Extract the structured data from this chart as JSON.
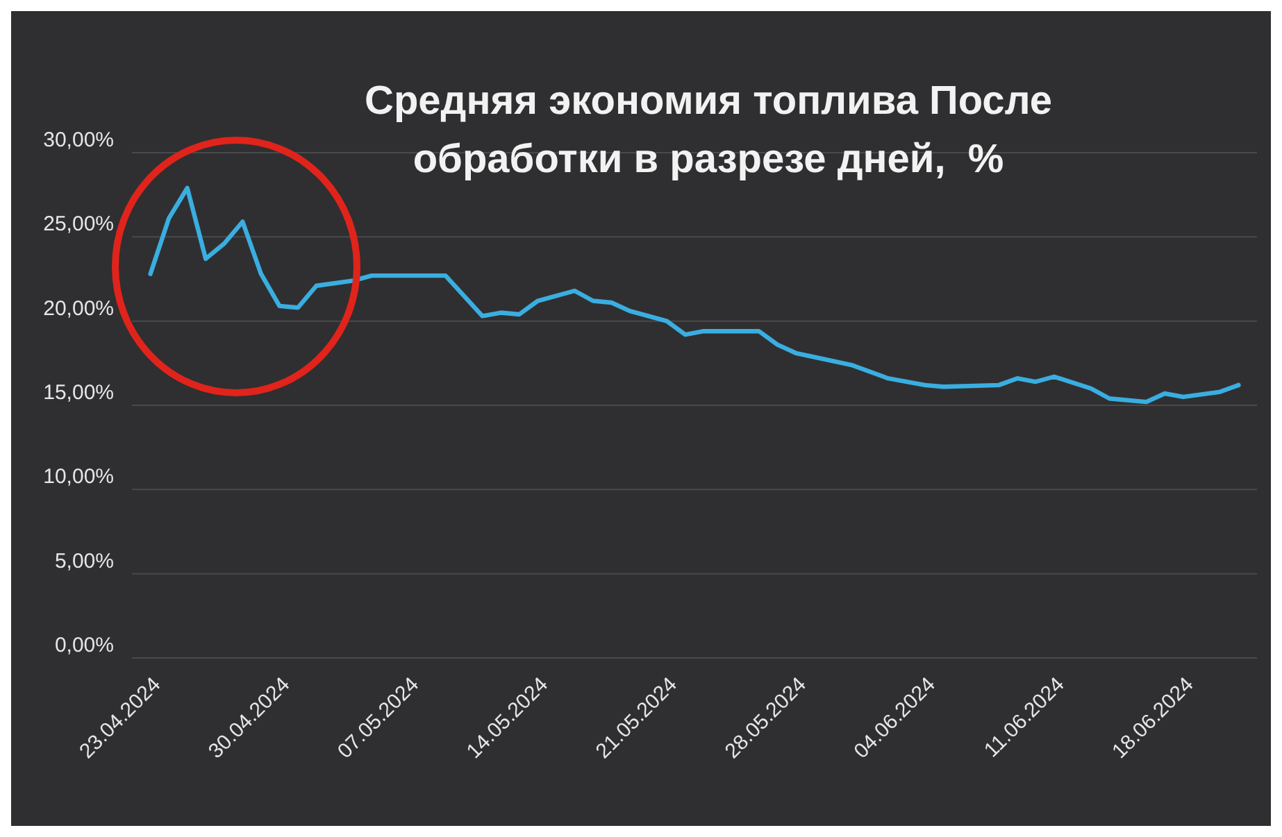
{
  "chart_data": {
    "type": "line",
    "title": "Средняя экономия топлива После обработки в разрезе дней,  %",
    "x": [
      "2024-04-23",
      "2024-04-24",
      "2024-04-25",
      "2024-04-26",
      "2024-04-27",
      "2024-04-28",
      "2024-04-29",
      "2024-04-30",
      "2024-05-01",
      "2024-05-02",
      "2024-05-04",
      "2024-05-05",
      "2024-05-09",
      "2024-05-11",
      "2024-05-12",
      "2024-05-13",
      "2024-05-14",
      "2024-05-16",
      "2024-05-17",
      "2024-05-18",
      "2024-05-19",
      "2024-05-20",
      "2024-05-21",
      "2024-05-22",
      "2024-05-23",
      "2024-05-26",
      "2024-05-27",
      "2024-05-28",
      "2024-05-31",
      "2024-06-02",
      "2024-06-04",
      "2024-06-05",
      "2024-06-08",
      "2024-06-09",
      "2024-06-10",
      "2024-06-11",
      "2024-06-13",
      "2024-06-14",
      "2024-06-16",
      "2024-06-17",
      "2024-06-18",
      "2024-06-20",
      "2024-06-21"
    ],
    "series": [
      {
        "color": "#3aaee0",
        "values": [
          22.8,
          26.1,
          27.9,
          23.7,
          24.6,
          25.9,
          22.8,
          20.9,
          20.8,
          22.1,
          22.4,
          22.7,
          22.7,
          20.3,
          20.5,
          20.4,
          21.2,
          21.8,
          21.2,
          21.1,
          20.6,
          20.3,
          20.0,
          19.2,
          19.4,
          19.4,
          18.6,
          18.1,
          17.4,
          16.6,
          16.2,
          16.1,
          16.2,
          16.6,
          16.4,
          16.7,
          16.0,
          15.4,
          15.2,
          15.7,
          15.5,
          15.8,
          16.2
        ]
      }
    ],
    "xlim": [
      "2024-04-22",
      "2024-06-22"
    ],
    "xticks": [
      {
        "value": "2024-04-23",
        "label": "23.04.2024"
      },
      {
        "value": "2024-04-30",
        "label": "30.04.2024"
      },
      {
        "value": "2024-05-07",
        "label": "07.05.2024"
      },
      {
        "value": "2024-05-14",
        "label": "14.05.2024"
      },
      {
        "value": "2024-05-21",
        "label": "21.05.2024"
      },
      {
        "value": "2024-05-28",
        "label": "28.05.2024"
      },
      {
        "value": "2024-06-04",
        "label": "04.06.2024"
      },
      {
        "value": "2024-06-11",
        "label": "11.06.2024"
      },
      {
        "value": "2024-06-18",
        "label": "18.06.2024"
      }
    ],
    "ylim": [
      0,
      30
    ],
    "yticks": [
      {
        "value": 0,
        "label": "0,00%"
      },
      {
        "value": 5,
        "label": "5,00%"
      },
      {
        "value": 10,
        "label": "10,00%"
      },
      {
        "value": 15,
        "label": "15,00%"
      },
      {
        "value": 20,
        "label": "20,00%"
      },
      {
        "value": 25,
        "label": "25,00%"
      },
      {
        "value": 30,
        "label": "30,00%"
      }
    ],
    "grid": "y",
    "marker": "none",
    "line_style": "solid"
  }
}
